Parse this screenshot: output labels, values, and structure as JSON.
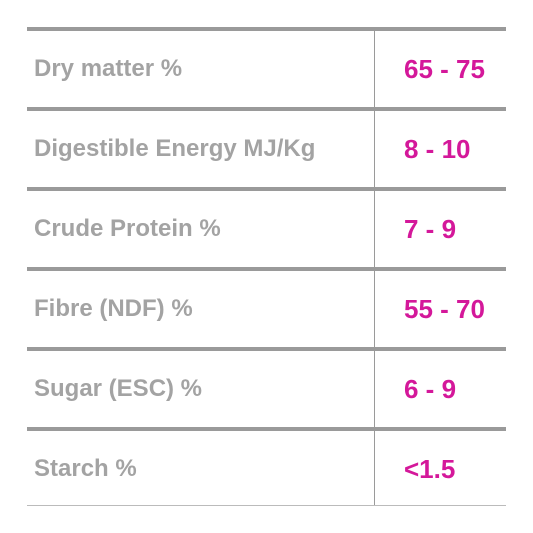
{
  "table": {
    "rows": [
      [
        "Dry matter %",
        "65 - 75"
      ],
      [
        "Digestible Energy MJ/Kg",
        "8 - 10"
      ],
      [
        "Crude Protein %",
        "7 - 9"
      ],
      [
        "Fibre (NDF) %",
        "55 - 70"
      ],
      [
        "Sugar (ESC) %",
        "6 - 9"
      ],
      [
        "Starch %",
        "<1.5"
      ]
    ]
  }
}
